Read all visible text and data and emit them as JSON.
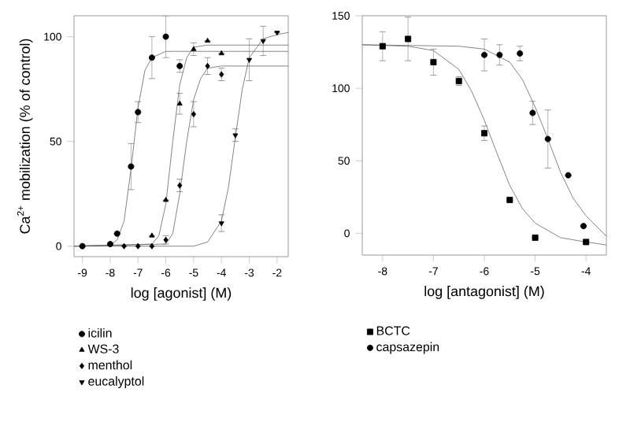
{
  "chart_data": [
    {
      "type": "scatter",
      "xlabel": "log [agonist] (M)",
      "ylabel": "Ca$^{2+}$ mobilization (% of control)",
      "xlim": [
        -9.3,
        -1.6
      ],
      "ylim": [
        -5,
        110
      ],
      "xticks": [
        -9,
        -8,
        -7,
        -6,
        -5,
        -4,
        -3,
        -2
      ],
      "yticks": [
        0,
        50,
        100
      ],
      "legend": "bottom",
      "grid": false,
      "series": [
        {
          "name": "icilin",
          "type": "scatter",
          "marker": "circle",
          "color": "#000000",
          "x": [
            -9,
            -8,
            -7.75,
            -7.25,
            -7,
            -6.5,
            -6,
            -5.5
          ],
          "values": [
            0,
            1,
            6,
            38,
            64,
            90,
            100,
            86
          ],
          "errors": [
            null,
            null,
            null,
            11,
            5,
            10,
            10,
            3
          ]
        },
        {
          "name": "WS-3",
          "type": "scatter",
          "marker": "triangle",
          "color": "#000000",
          "x": [
            -6.5,
            -6,
            -5.5,
            -5,
            -4.5,
            -4
          ],
          "values": [
            5,
            22,
            68,
            94,
            98,
            92
          ],
          "errors": [
            null,
            null,
            5,
            3,
            null,
            null
          ]
        },
        {
          "name": "menthol",
          "type": "scatter",
          "marker": "diamond",
          "color": "#000000",
          "x": [
            -7.5,
            -7,
            -6.5,
            -6,
            -5.5,
            -5,
            -4.5,
            -4
          ],
          "values": [
            0,
            0,
            0,
            3,
            29,
            63,
            86,
            82
          ],
          "errors": [
            null,
            null,
            null,
            2,
            3,
            6,
            4,
            3
          ]
        },
        {
          "name": "eucalyptol",
          "type": "scatter",
          "marker": "triangle-down",
          "color": "#000000",
          "x": [
            -4,
            -3.5,
            -3,
            -2.5,
            -2
          ],
          "values": [
            11,
            53,
            89,
            98,
            102
          ],
          "errors": [
            4,
            3,
            10,
            7,
            null
          ]
        },
        {
          "type": "line",
          "marker": "none",
          "color": "#666666",
          "x": [
            -9.3,
            -8,
            -7.75,
            -7.5,
            -7.25,
            -7,
            -6.75,
            -6.5,
            -6,
            -1.6
          ],
          "values": [
            0,
            0.5,
            3,
            12,
            37,
            66,
            84,
            90,
            93,
            93
          ]
        },
        {
          "type": "line",
          "marker": "none",
          "color": "#666666",
          "x": [
            -9.3,
            -6.5,
            -6.25,
            -6,
            -5.75,
            -5.5,
            -5.25,
            -5,
            -4.5,
            -1.6
          ],
          "values": [
            0,
            1,
            5,
            20,
            50,
            77,
            90,
            95,
            96,
            96
          ]
        },
        {
          "type": "line",
          "marker": "none",
          "color": "#666666",
          "x": [
            -9.3,
            -6,
            -5.75,
            -5.5,
            -5.25,
            -5,
            -4.75,
            -4.5,
            -4,
            -1.6
          ],
          "values": [
            0,
            1,
            6,
            25,
            50,
            70,
            80,
            85,
            86,
            86
          ]
        },
        {
          "type": "line",
          "marker": "none",
          "color": "#666666",
          "x": [
            -9.3,
            -5,
            -4.5,
            -4,
            -3.75,
            -3.5,
            -3.25,
            -3,
            -2.5,
            -2,
            -1.6
          ],
          "values": [
            0,
            0,
            2,
            12,
            28,
            52,
            75,
            90,
            99,
            101,
            102
          ]
        }
      ]
    },
    {
      "type": "scatter",
      "xlabel": "log [antagonist] (M)",
      "xlim": [
        -8.4,
        -3.6
      ],
      "ylim": [
        -15,
        150
      ],
      "xticks": [
        -8,
        -7,
        -6,
        -5,
        -4
      ],
      "yticks": [
        0,
        50,
        100,
        150
      ],
      "legend": "bottom",
      "grid": false,
      "series": [
        {
          "name": "BCTC",
          "type": "scatter",
          "marker": "square",
          "color": "#000000",
          "x": [
            -8,
            -7.5,
            -7,
            -6.5,
            -6,
            -5.5,
            -5,
            -4
          ],
          "values": [
            129,
            134,
            118,
            105,
            69,
            23,
            -3,
            -6
          ],
          "errors": [
            10,
            15,
            9,
            3,
            5,
            null,
            null,
            null
          ]
        },
        {
          "name": "capsazepin",
          "type": "scatter",
          "marker": "circle",
          "color": "#000000",
          "x": [
            -6,
            -5.7,
            -5.3,
            -5.05,
            -4.75,
            -4.35,
            -4.05
          ],
          "values": [
            123,
            123,
            124,
            83,
            65,
            40,
            5
          ],
          "errors": [
            11,
            7,
            5,
            8,
            20,
            null,
            null
          ]
        },
        {
          "type": "line",
          "marker": "none",
          "color": "#666666",
          "x": [
            -8.4,
            -7.5,
            -7,
            -6.5,
            -6.25,
            -6,
            -5.75,
            -5.5,
            -5.25,
            -5,
            -4.5,
            -4,
            -3.6
          ],
          "values": [
            130,
            129,
            126,
            113,
            98,
            78,
            55,
            33,
            17,
            7,
            -3,
            -6,
            -8
          ]
        },
        {
          "type": "line",
          "marker": "none",
          "color": "#666666",
          "x": [
            -8.4,
            -6.5,
            -6,
            -5.5,
            -5.25,
            -5,
            -4.75,
            -4.5,
            -4.25,
            -4,
            -3.6
          ],
          "values": [
            130,
            129,
            127,
            118,
            106,
            87,
            65,
            42,
            24,
            12,
            -2
          ]
        }
      ]
    }
  ]
}
